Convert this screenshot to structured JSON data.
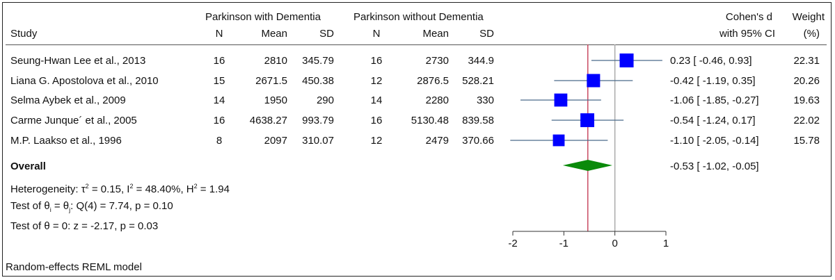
{
  "header": {
    "group1": "Parkinson with Dementia",
    "group2": "Parkinson without Dementia",
    "study": "Study",
    "n": "N",
    "mean": "Mean",
    "sd": "SD",
    "effect_line1": "Cohen's d",
    "effect_line2": "with 95% CI",
    "weight_line1": "Weight",
    "weight_line2": "(%)"
  },
  "studies": [
    {
      "name": "Seung-Hwan Lee et al., 2013",
      "n1": "16",
      "mean1": "2810",
      "sd1": "345.79",
      "n2": "16",
      "mean2": "2730",
      "sd2": "344.9",
      "ci_text": "0.23 [ -0.46,  0.93]",
      "weight": "22.31"
    },
    {
      "name": "Liana G. Apostolova et al., 2010",
      "n1": "15",
      "mean1": "2671.5",
      "sd1": "450.38",
      "n2": "12",
      "mean2": "2876.5",
      "sd2": "528.21",
      "ci_text": "-0.42 [ -1.19,  0.35]",
      "weight": "20.26"
    },
    {
      "name": "Selma Aybek et al., 2009",
      "n1": "14",
      "mean1": "1950",
      "sd1": "290",
      "n2": "14",
      "mean2": "2280",
      "sd2": "330",
      "ci_text": "-1.06 [ -1.85, -0.27]",
      "weight": "19.63"
    },
    {
      "name": "Carme Junque´ et al., 2005",
      "n1": "16",
      "mean1": "4638.27",
      "sd1": "993.79",
      "n2": "16",
      "mean2": "5130.48",
      "sd2": "839.58",
      "ci_text": "-0.54 [ -1.24,  0.17]",
      "weight": "22.02"
    },
    {
      "name": "M.P. Laakso et al., 1996",
      "n1": "8",
      "mean1": "2097",
      "sd1": "310.07",
      "n2": "12",
      "mean2": "2479",
      "sd2": "370.66",
      "ci_text": "-1.10 [ -2.05, -0.14]",
      "weight": "15.78"
    }
  ],
  "overall": {
    "label": "Overall",
    "ci_text": "-0.53 [ -1.02, -0.05]"
  },
  "stats": {
    "heterogeneity_prefix": "Heterogeneity: τ",
    "tau_sup": "2",
    "tau_val": " = 0.15, I",
    "i_sup": "2",
    "i_val": " = 48.40%, H",
    "h_sup": "2",
    "h_val": " = 1.94",
    "test1_a": "Test of θ",
    "test1_sub1": "i",
    "test1_b": " = θ",
    "test1_sub2": "j",
    "test1_c": ": Q(4) = 7.74, p = 0.10",
    "test2": "Test of θ = 0: z = -2.17, p = 0.03"
  },
  "footer": "Random-effects REML model",
  "chart_data": {
    "type": "scatter",
    "subtype": "forest plot",
    "xlim": [
      -2,
      1
    ],
    "xticks": [
      "-2",
      "-1",
      "0",
      "1"
    ],
    "null_line": 0,
    "overall_line": -0.53,
    "colors": {
      "marker": "#0000ff",
      "ci_line": "#4a6a8a",
      "diamond": "#0a8a0a",
      "overall_line": "#c0304a",
      "null_line": "#aaaaaa"
    },
    "points": [
      {
        "d": 0.23,
        "lo": -0.46,
        "hi": 0.93,
        "weight": 22.31
      },
      {
        "d": -0.42,
        "lo": -1.19,
        "hi": 0.35,
        "weight": 20.26
      },
      {
        "d": -1.06,
        "lo": -1.85,
        "hi": -0.27,
        "weight": 19.63
      },
      {
        "d": -0.54,
        "lo": -1.24,
        "hi": 0.17,
        "weight": 22.02
      },
      {
        "d": -1.1,
        "lo": -2.05,
        "hi": -0.14,
        "weight": 15.78
      }
    ],
    "overall": {
      "d": -0.53,
      "lo": -1.02,
      "hi": -0.05
    }
  }
}
